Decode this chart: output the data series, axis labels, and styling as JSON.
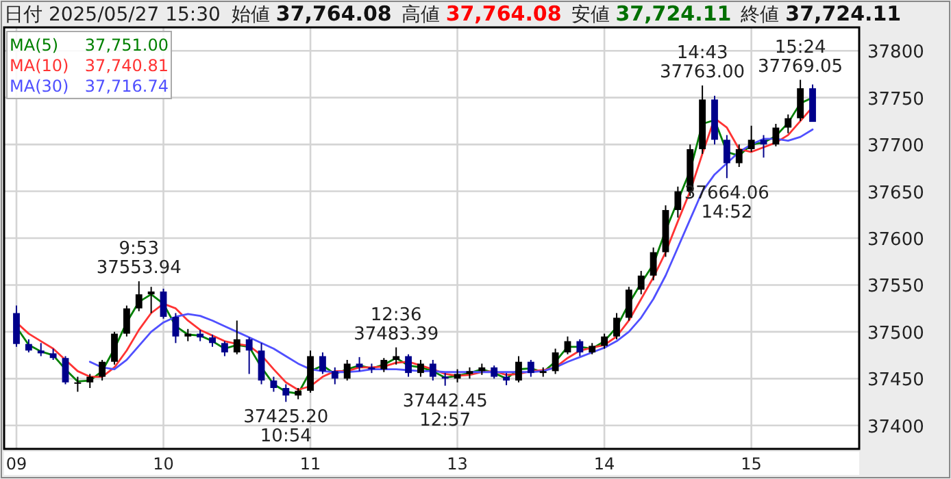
{
  "chart_data": {
    "type": "candlestick",
    "title": "日付 2025/05/27 15:30",
    "annotations": [
      "始値 37,764.08",
      "高値 37,764.08",
      "安値 37,724.11",
      "終値 37,724.11",
      "37,751.00",
      "37,740.81",
      "37,716.74",
      {
        "text": "9:53\n37553.94",
        "y": 37553.94
      },
      {
        "text": "37425.20\n10:54",
        "y": 37425.2
      },
      {
        "text": "12:36\n37483.39",
        "y": 37483.39
      },
      {
        "text": "37442.45\n12:57",
        "y": 37442.45
      },
      {
        "text": "14:43\n37763.00",
        "y": 37763.0
      },
      {
        "text": "37664.06\n14:52",
        "y": 37664.06
      },
      {
        "text": "15:24\n37769.05",
        "y": 37769.05
      }
    ],
    "categories": [
      "09",
      null,
      null,
      null,
      null,
      null,
      null,
      null,
      null,
      null,
      null,
      null,
      "10",
      null,
      null,
      null,
      null,
      null,
      null,
      null,
      null,
      null,
      null,
      null,
      "11",
      null,
      null,
      null,
      null,
      null,
      null,
      null,
      null,
      null,
      null,
      null,
      "13",
      null,
      null,
      null,
      null,
      null,
      null,
      null,
      null,
      null,
      null,
      null,
      "14",
      null,
      null,
      null,
      null,
      null,
      null,
      null,
      null,
      null,
      null,
      null,
      "15",
      null,
      null,
      null,
      null,
      null
    ],
    "ohlc": [
      [
        37520,
        37528,
        37484,
        37487
      ],
      [
        37487,
        37492,
        37478,
        37480
      ],
      [
        37480,
        37488,
        37474,
        37477
      ],
      [
        37477,
        37482,
        37470,
        37472
      ],
      [
        37472,
        37474,
        37444,
        37446
      ],
      [
        37446,
        37452,
        37436,
        37446
      ],
      [
        37446,
        37455,
        37440,
        37452
      ],
      [
        37452,
        37470,
        37448,
        37468
      ],
      [
        37468,
        37500,
        37465,
        37498
      ],
      [
        37498,
        37528,
        37495,
        37525
      ],
      [
        37525,
        37553.94,
        37522,
        37540
      ],
      [
        37540,
        37548,
        37520,
        37543
      ],
      [
        37543,
        37546,
        37514,
        37516
      ],
      [
        37516,
        37520,
        37488,
        37495
      ],
      [
        37495,
        37503,
        37490,
        37498
      ],
      [
        37498,
        37502,
        37490,
        37494
      ],
      [
        37494,
        37497,
        37484,
        37488
      ],
      [
        37488,
        37490,
        37474,
        37478
      ],
      [
        37478,
        37512,
        37476,
        37492
      ],
      [
        37492,
        37494,
        37455,
        37480
      ],
      [
        37480,
        37488,
        37444,
        37448
      ],
      [
        37448,
        37452,
        37436,
        37440
      ],
      [
        37440,
        37444,
        37425.2,
        37432
      ],
      [
        37432,
        37440,
        37428,
        37437
      ],
      [
        37437,
        37480,
        37435,
        37474
      ],
      [
        37474,
        37478,
        37455,
        37458
      ],
      [
        37458,
        37462,
        37444,
        37450
      ],
      [
        37450,
        37470,
        37448,
        37466
      ],
      [
        37466,
        37473,
        37458,
        37462
      ],
      [
        37462,
        37466,
        37456,
        37460
      ],
      [
        37460,
        37472,
        37457,
        37470
      ],
      [
        37470,
        37483.39,
        37465,
        37474
      ],
      [
        37474,
        37476,
        37452,
        37456
      ],
      [
        37456,
        37470,
        37452,
        37466
      ],
      [
        37466,
        37470,
        37448,
        37452
      ],
      [
        37452,
        37456,
        37442.45,
        37450
      ],
      [
        37450,
        37460,
        37446,
        37455
      ],
      [
        37455,
        37462,
        37450,
        37458
      ],
      [
        37458,
        37466,
        37454,
        37462
      ],
      [
        37462,
        37464,
        37450,
        37452
      ],
      [
        37452,
        37456,
        37443,
        37448
      ],
      [
        37448,
        37474,
        37446,
        37468
      ],
      [
        37468,
        37470,
        37452,
        37456
      ],
      [
        37456,
        37462,
        37452,
        37458
      ],
      [
        37458,
        37482,
        37455,
        37478
      ],
      [
        37478,
        37495,
        37476,
        37490
      ],
      [
        37490,
        37492,
        37474,
        37478
      ],
      [
        37478,
        37488,
        37476,
        37485
      ],
      [
        37485,
        37498,
        37482,
        37495
      ],
      [
        37495,
        37520,
        37492,
        37515
      ],
      [
        37515,
        37548,
        37512,
        37545
      ],
      [
        37545,
        37565,
        37540,
        37560
      ],
      [
        37560,
        37590,
        37555,
        37585
      ],
      [
        37585,
        37635,
        37580,
        37630
      ],
      [
        37630,
        37655,
        37622,
        37650
      ],
      [
        37650,
        37700,
        37645,
        37695
      ],
      [
        37695,
        37763.0,
        37690,
        37748
      ],
      [
        37748,
        37752,
        37700,
        37705
      ],
      [
        37705,
        37710,
        37664.06,
        37680
      ],
      [
        37680,
        37700,
        37676,
        37695
      ],
      [
        37695,
        37720,
        37692,
        37705
      ],
      [
        37705,
        37710,
        37686,
        37700
      ],
      [
        37700,
        37722,
        37698,
        37718
      ],
      [
        37718,
        37732,
        37712,
        37728
      ],
      [
        37728,
        37769.05,
        37725,
        37760
      ],
      [
        37760,
        37764.08,
        37724.11,
        37724.11
      ]
    ],
    "series": [
      {
        "name": "MA(5)",
        "type": "line",
        "color": "#008000",
        "values": [
          37505,
          37486,
          37479,
          37475,
          37460,
          37447,
          37448,
          37458,
          37482,
          37510,
          37532,
          37540,
          37530,
          37506,
          37497,
          37496,
          37490,
          37482,
          37486,
          37484,
          37462,
          37444,
          37436,
          37434,
          37458,
          37464,
          37455,
          37460,
          37464,
          37461,
          37465,
          37472,
          37464,
          37462,
          37458,
          37451,
          37453,
          37456,
          37460,
          37456,
          37450,
          37460,
          37461,
          37457,
          37468,
          37484,
          37484,
          37482,
          37490,
          37505,
          37530,
          37552,
          37572,
          37608,
          37640,
          37672,
          37722,
          37726,
          37692,
          37688,
          37700,
          37702,
          37709,
          37723,
          37744,
          37750
        ]
      },
      {
        "name": "MA(10)",
        "type": "line",
        "color": "#ff3333",
        "values": [
          37510,
          37498,
          37490,
          37482,
          37470,
          37458,
          37452,
          37452,
          37462,
          37480,
          37502,
          37520,
          37530,
          37525,
          37512,
          37502,
          37496,
          37490,
          37487,
          37485,
          37475,
          37460,
          37446,
          37438,
          37442,
          37452,
          37458,
          37458,
          37462,
          37462,
          37463,
          37467,
          37468,
          37464,
          37460,
          37455,
          37453,
          37454,
          37457,
          37458,
          37454,
          37455,
          37458,
          37459,
          37462,
          37472,
          37480,
          37483,
          37486,
          37495,
          37512,
          37535,
          37558,
          37585,
          37618,
          37650,
          37690,
          37728,
          37718,
          37695,
          37692,
          37697,
          37702,
          37710,
          37725,
          37740
        ]
      },
      {
        "name": "MA(30)",
        "type": "line",
        "color": "#5050ff",
        "values": [
          null,
          null,
          null,
          null,
          null,
          null,
          37468,
          37462,
          37460,
          37470,
          37485,
          37500,
          37510,
          37516,
          37519,
          37517,
          37512,
          37506,
          37500,
          37494,
          37488,
          37482,
          37474,
          37466,
          37460,
          37458,
          37457,
          37457,
          37458,
          37460,
          37460,
          37460,
          37459,
          37458,
          37458,
          37457,
          37457,
          37457,
          37457,
          37457,
          37457,
          37457,
          37457,
          37458,
          37462,
          37468,
          37473,
          37478,
          37483,
          37490,
          37500,
          37515,
          37535,
          37560,
          37590,
          37620,
          37650,
          37668,
          37680,
          37692,
          37700,
          37706,
          37706,
          37704,
          37708,
          37716
        ]
      }
    ],
    "ylim": [
      37375,
      37825
    ],
    "yticks": [
      37400,
      37450,
      37500,
      37550,
      37600,
      37650,
      37700,
      37750,
      37800
    ],
    "grid": true,
    "legend": "top left"
  }
}
